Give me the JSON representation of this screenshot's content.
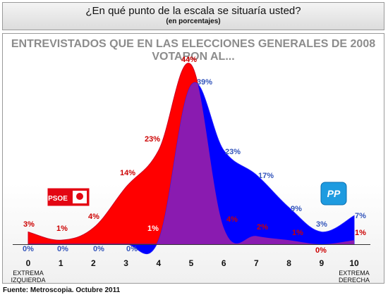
{
  "header": {
    "title": "¿En qué punto de la escala se situaría usted?",
    "subtitle": "(en porcentajes)"
  },
  "footer": {
    "source": "Fuente: Metroscopia. Octubre 2011"
  },
  "chart_data": {
    "type": "area",
    "title": "ENTREVISTADOS QUE EN LAS ELECCIONES GENERALES DE 2008 VOTARON AL...",
    "x": [
      0,
      1,
      2,
      3,
      4,
      5,
      6,
      7,
      8,
      9,
      10
    ],
    "tick_labels": [
      "0",
      "1",
      "2",
      "3",
      "4",
      "5",
      "6",
      "7",
      "8",
      "9",
      "10"
    ],
    "tick_sublabels": {
      "0": [
        "EXTREMA",
        "IZQUIERDA"
      ],
      "10": [
        "EXTREMA",
        "DERECHA"
      ]
    },
    "ylim": [
      0,
      44
    ],
    "grid": false,
    "series": [
      {
        "name": "PSOE",
        "values": [
          3,
          1,
          4,
          14,
          23,
          44,
          4,
          2,
          1,
          0,
          1
        ],
        "color": "#ff0000",
        "label_color": "#cc0000"
      },
      {
        "name": "PP",
        "values": [
          0,
          0,
          0,
          0,
          1,
          39,
          23,
          17,
          9,
          3,
          7
        ],
        "color": "#0000ff",
        "label_color": "#3355bb"
      }
    ],
    "overlap_color": "#8a1bb0",
    "value_labels": {
      "PSOE": [
        "3%",
        "1%",
        "4%",
        "14%",
        "23%",
        "44%",
        "4%",
        "2%",
        "1%",
        "0%",
        "1%"
      ],
      "PP": [
        "0%",
        "0%",
        "0%",
        "0%",
        "1%",
        "39%",
        "23%",
        "17%",
        "9%",
        "3%",
        "7%"
      ]
    },
    "logos": {
      "psoe": "PSOE",
      "pp": "PP"
    }
  }
}
